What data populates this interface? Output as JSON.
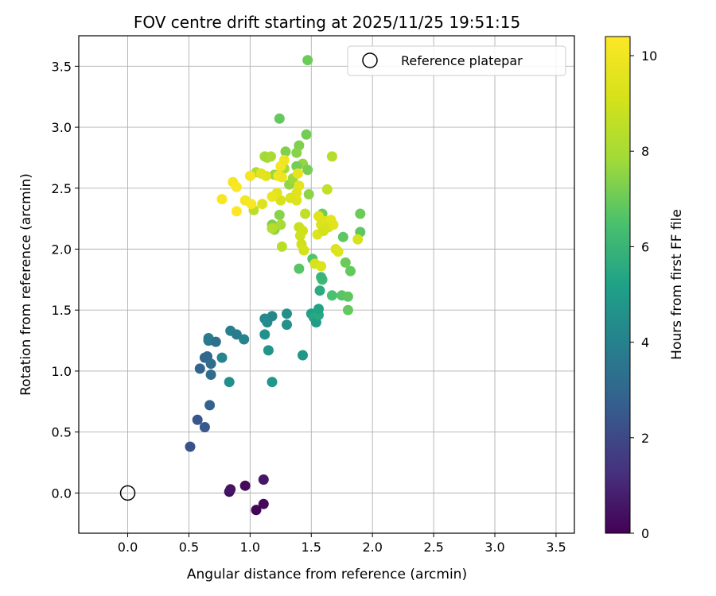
{
  "chart_data": {
    "type": "scatter",
    "title": "FOV centre drift starting at 2025/11/25 19:51:15",
    "xlabel": "Angular distance from reference (arcmin)",
    "ylabel": "Rotation from reference (arcmin)",
    "xlim": [
      -0.4,
      3.65
    ],
    "ylim": [
      -0.33,
      3.75
    ],
    "xticks": [
      0.0,
      0.5,
      1.0,
      1.5,
      2.0,
      2.5,
      3.0,
      3.5
    ],
    "yticks": [
      0.0,
      0.5,
      1.0,
      1.5,
      2.0,
      2.5,
      3.0,
      3.5
    ],
    "grid": true,
    "legend": {
      "label": "Reference platepar",
      "position": "top-right"
    },
    "reference_point": {
      "x": 0.0,
      "y": 0.0
    },
    "colorbar": {
      "label": "Hours from first FF file",
      "min": 0,
      "max": 10.4,
      "ticks": [
        0,
        2,
        4,
        6,
        8,
        10
      ],
      "colormap": "viridis"
    },
    "points": [
      {
        "x": 0.83,
        "y": 0.01,
        "h": 0.3
      },
      {
        "x": 0.84,
        "y": 0.03,
        "h": 0.5
      },
      {
        "x": 0.96,
        "y": 0.06,
        "h": 0.2
      },
      {
        "x": 1.05,
        "y": -0.14,
        "h": 0.1
      },
      {
        "x": 1.11,
        "y": -0.09,
        "h": 0.2
      },
      {
        "x": 1.11,
        "y": 0.11,
        "h": 0.6
      },
      {
        "x": 0.51,
        "y": 0.38,
        "h": 2.3
      },
      {
        "x": 0.57,
        "y": 0.6,
        "h": 2.4
      },
      {
        "x": 0.63,
        "y": 0.54,
        "h": 2.5
      },
      {
        "x": 0.67,
        "y": 0.72,
        "h": 2.8
      },
      {
        "x": 0.59,
        "y": 1.02,
        "h": 2.9
      },
      {
        "x": 0.63,
        "y": 1.11,
        "h": 3.0
      },
      {
        "x": 0.65,
        "y": 1.12,
        "h": 3.1
      },
      {
        "x": 0.68,
        "y": 0.97,
        "h": 3.2
      },
      {
        "x": 0.68,
        "y": 1.06,
        "h": 3.2
      },
      {
        "x": 0.66,
        "y": 1.27,
        "h": 3.9
      },
      {
        "x": 0.66,
        "y": 1.25,
        "h": 3.7
      },
      {
        "x": 0.72,
        "y": 1.24,
        "h": 3.3
      },
      {
        "x": 0.77,
        "y": 1.11,
        "h": 4.1
      },
      {
        "x": 0.83,
        "y": 0.91,
        "h": 4.5
      },
      {
        "x": 0.84,
        "y": 1.33,
        "h": 3.9
      },
      {
        "x": 0.89,
        "y": 1.3,
        "h": 3.8
      },
      {
        "x": 0.95,
        "y": 1.26,
        "h": 4.0
      },
      {
        "x": 1.12,
        "y": 1.43,
        "h": 4.3
      },
      {
        "x": 1.12,
        "y": 1.3,
        "h": 4.6
      },
      {
        "x": 1.14,
        "y": 1.4,
        "h": 4.4
      },
      {
        "x": 1.15,
        "y": 1.17,
        "h": 4.7
      },
      {
        "x": 1.18,
        "y": 1.45,
        "h": 4.2
      },
      {
        "x": 1.18,
        "y": 0.91,
        "h": 4.8
      },
      {
        "x": 1.3,
        "y": 1.47,
        "h": 4.5
      },
      {
        "x": 1.3,
        "y": 1.38,
        "h": 4.6
      },
      {
        "x": 1.43,
        "y": 1.13,
        "h": 4.8
      },
      {
        "x": 1.5,
        "y": 1.47,
        "h": 5.2
      },
      {
        "x": 1.52,
        "y": 1.44,
        "h": 5.4
      },
      {
        "x": 1.54,
        "y": 1.4,
        "h": 5.0
      },
      {
        "x": 1.56,
        "y": 1.46,
        "h": 5.5
      },
      {
        "x": 1.56,
        "y": 1.51,
        "h": 5.3
      },
      {
        "x": 1.57,
        "y": 1.66,
        "h": 5.6
      },
      {
        "x": 1.59,
        "y": 1.75,
        "h": 6.2
      },
      {
        "x": 1.58,
        "y": 1.77,
        "h": 6.0
      },
      {
        "x": 1.51,
        "y": 1.92,
        "h": 6.6
      },
      {
        "x": 1.67,
        "y": 1.62,
        "h": 6.5
      },
      {
        "x": 1.75,
        "y": 1.62,
        "h": 6.7
      },
      {
        "x": 1.8,
        "y": 1.61,
        "h": 6.8
      },
      {
        "x": 1.8,
        "y": 1.5,
        "h": 6.9
      },
      {
        "x": 1.82,
        "y": 1.82,
        "h": 6.9
      },
      {
        "x": 1.78,
        "y": 1.89,
        "h": 7.0
      },
      {
        "x": 1.76,
        "y": 2.1,
        "h": 6.8
      },
      {
        "x": 1.9,
        "y": 2.29,
        "h": 7.0
      },
      {
        "x": 1.9,
        "y": 2.14,
        "h": 6.8
      },
      {
        "x": 1.4,
        "y": 1.84,
        "h": 6.7
      },
      {
        "x": 1.47,
        "y": 3.55,
        "h": 7.0
      },
      {
        "x": 1.24,
        "y": 3.07,
        "h": 6.9
      },
      {
        "x": 1.46,
        "y": 2.94,
        "h": 7.1
      },
      {
        "x": 1.4,
        "y": 2.85,
        "h": 7.3
      },
      {
        "x": 1.38,
        "y": 2.79,
        "h": 7.4
      },
      {
        "x": 1.43,
        "y": 2.7,
        "h": 7.6
      },
      {
        "x": 1.47,
        "y": 2.65,
        "h": 7.2
      },
      {
        "x": 1.48,
        "y": 2.45,
        "h": 7.5
      },
      {
        "x": 1.38,
        "y": 2.68,
        "h": 7.1
      },
      {
        "x": 1.29,
        "y": 2.8,
        "h": 7.3
      },
      {
        "x": 1.12,
        "y": 2.76,
        "h": 7.9
      },
      {
        "x": 1.14,
        "y": 2.75,
        "h": 7.8
      },
      {
        "x": 1.17,
        "y": 2.76,
        "h": 8.0
      },
      {
        "x": 1.2,
        "y": 2.61,
        "h": 7.7
      },
      {
        "x": 1.28,
        "y": 2.66,
        "h": 7.9
      },
      {
        "x": 1.32,
        "y": 2.53,
        "h": 7.6
      },
      {
        "x": 1.35,
        "y": 2.58,
        "h": 7.8
      },
      {
        "x": 1.05,
        "y": 2.63,
        "h": 8.2
      },
      {
        "x": 1.03,
        "y": 2.32,
        "h": 8.5
      },
      {
        "x": 1.24,
        "y": 2.28,
        "h": 7.4
      },
      {
        "x": 1.18,
        "y": 2.2,
        "h": 7.3
      },
      {
        "x": 1.2,
        "y": 2.16,
        "h": 7.5
      },
      {
        "x": 1.25,
        "y": 2.2,
        "h": 8.0
      },
      {
        "x": 1.18,
        "y": 2.17,
        "h": 8.3
      },
      {
        "x": 1.26,
        "y": 2.02,
        "h": 8.4
      },
      {
        "x": 1.45,
        "y": 2.29,
        "h": 8.6
      },
      {
        "x": 1.59,
        "y": 2.29,
        "h": 7.1
      },
      {
        "x": 1.63,
        "y": 2.49,
        "h": 8.7
      },
      {
        "x": 1.67,
        "y": 2.76,
        "h": 8.3
      },
      {
        "x": 1.4,
        "y": 2.18,
        "h": 8.8
      },
      {
        "x": 1.41,
        "y": 2.11,
        "h": 8.9
      },
      {
        "x": 1.42,
        "y": 2.04,
        "h": 9.0
      },
      {
        "x": 1.44,
        "y": 1.99,
        "h": 9.1
      },
      {
        "x": 1.43,
        "y": 2.15,
        "h": 9.0
      },
      {
        "x": 1.53,
        "y": 1.88,
        "h": 9.2
      },
      {
        "x": 1.58,
        "y": 1.86,
        "h": 9.3
      },
      {
        "x": 1.55,
        "y": 2.12,
        "h": 9.4
      },
      {
        "x": 1.56,
        "y": 2.27,
        "h": 9.5
      },
      {
        "x": 1.58,
        "y": 2.2,
        "h": 9.3
      },
      {
        "x": 1.6,
        "y": 2.15,
        "h": 9.1
      },
      {
        "x": 1.62,
        "y": 2.23,
        "h": 9.4
      },
      {
        "x": 1.64,
        "y": 2.18,
        "h": 9.2
      },
      {
        "x": 1.66,
        "y": 2.24,
        "h": 9.6
      },
      {
        "x": 1.68,
        "y": 2.2,
        "h": 9.5
      },
      {
        "x": 1.7,
        "y": 2.0,
        "h": 9.3
      },
      {
        "x": 1.72,
        "y": 1.98,
        "h": 9.4
      },
      {
        "x": 1.88,
        "y": 2.08,
        "h": 9.2
      },
      {
        "x": 1.38,
        "y": 2.4,
        "h": 9.4
      },
      {
        "x": 1.4,
        "y": 2.52,
        "h": 9.6
      },
      {
        "x": 1.39,
        "y": 2.62,
        "h": 9.7
      },
      {
        "x": 1.38,
        "y": 2.46,
        "h": 9.5
      },
      {
        "x": 1.33,
        "y": 2.42,
        "h": 9.3
      },
      {
        "x": 1.25,
        "y": 2.4,
        "h": 9.2
      },
      {
        "x": 1.22,
        "y": 2.46,
        "h": 9.6
      },
      {
        "x": 1.18,
        "y": 2.43,
        "h": 9.8
      },
      {
        "x": 1.23,
        "y": 2.6,
        "h": 10.0
      },
      {
        "x": 1.25,
        "y": 2.68,
        "h": 10.1
      },
      {
        "x": 1.26,
        "y": 2.59,
        "h": 9.9
      },
      {
        "x": 1.28,
        "y": 2.73,
        "h": 10.0
      },
      {
        "x": 1.1,
        "y": 2.37,
        "h": 9.4
      },
      {
        "x": 1.13,
        "y": 2.6,
        "h": 9.5
      },
      {
        "x": 1.09,
        "y": 2.62,
        "h": 9.6
      },
      {
        "x": 1.0,
        "y": 2.6,
        "h": 10.1
      },
      {
        "x": 0.86,
        "y": 2.55,
        "h": 10.2
      },
      {
        "x": 0.89,
        "y": 2.51,
        "h": 10.3
      },
      {
        "x": 0.77,
        "y": 2.41,
        "h": 10.2
      },
      {
        "x": 0.96,
        "y": 2.4,
        "h": 10.1
      },
      {
        "x": 1.01,
        "y": 2.37,
        "h": 10.3
      },
      {
        "x": 0.89,
        "y": 2.31,
        "h": 10.4
      }
    ]
  }
}
